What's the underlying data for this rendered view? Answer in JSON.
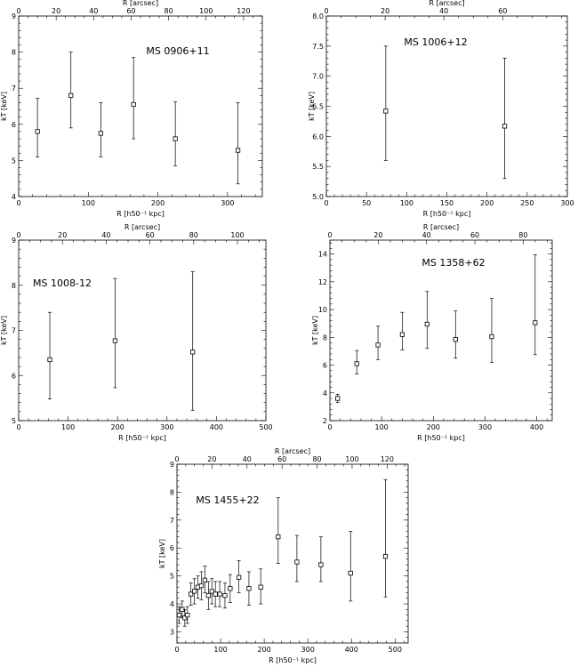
{
  "chart_data": [
    {
      "type": "scatter",
      "title": "MS 0906+11",
      "xlabel": "R [h50⁻¹ kpc]",
      "ylabel": "kT [keV]",
      "top_xlabel": "R [arcsec]",
      "xlim": [
        0,
        350
      ],
      "ylim": [
        4,
        9
      ],
      "top_xlim": [
        0,
        130
      ],
      "x_ticks": [
        0,
        100,
        200,
        300
      ],
      "y_ticks": [
        4,
        5,
        6,
        7,
        8,
        9
      ],
      "top_ticks": [
        0,
        20,
        40,
        60,
        80,
        100,
        120
      ],
      "series": [
        {
          "x": [
            27,
            75,
            118,
            165,
            225,
            315
          ],
          "y": [
            5.8,
            6.8,
            5.75,
            6.55,
            5.6,
            5.28
          ],
          "y_low": [
            5.1,
            5.9,
            5.1,
            5.6,
            4.85,
            4.35
          ],
          "y_high": [
            6.72,
            8.0,
            6.6,
            7.85,
            6.62,
            6.6
          ]
        }
      ]
    },
    {
      "type": "scatter",
      "title": "MS 1006+12",
      "xlabel": "R [h50⁻¹ kpc]",
      "ylabel": "kT [keV]",
      "top_xlabel": "R [arcsec]",
      "xlim": [
        0,
        300
      ],
      "ylim": [
        5.0,
        8.0
      ],
      "top_xlim": [
        0,
        82
      ],
      "x_ticks": [
        0,
        50,
        100,
        150,
        200,
        250,
        300
      ],
      "y_ticks": [
        5.0,
        5.5,
        6.0,
        6.5,
        7.0,
        7.5,
        8.0
      ],
      "y_tick_labels": [
        "5.0",
        "5.5",
        "6.0",
        "6.5",
        "7.0",
        "7.5",
        "8.0"
      ],
      "top_ticks": [
        0,
        20,
        40,
        60
      ],
      "series": [
        {
          "x": [
            74,
            222
          ],
          "y": [
            6.42,
            6.17
          ],
          "y_low": [
            5.6,
            5.3
          ],
          "y_high": [
            7.5,
            7.3
          ]
        }
      ]
    },
    {
      "type": "scatter",
      "title": "MS 1008-12",
      "xlabel": "R [h50⁻¹ kpc]",
      "ylabel": "kT [keV]",
      "top_xlabel": "R [arcsec]",
      "xlim": [
        0,
        500
      ],
      "ylim": [
        5,
        9
      ],
      "top_xlim": [
        0,
        113
      ],
      "x_ticks": [
        0,
        100,
        200,
        300,
        400,
        500
      ],
      "y_ticks": [
        5,
        6,
        7,
        8,
        9
      ],
      "top_ticks": [
        0,
        20,
        40,
        60,
        80,
        100
      ],
      "series": [
        {
          "x": [
            63,
            195,
            352
          ],
          "y": [
            6.35,
            6.77,
            6.52
          ],
          "y_low": [
            5.48,
            5.73,
            5.23
          ],
          "y_high": [
            7.4,
            8.15,
            8.3
          ]
        }
      ]
    },
    {
      "type": "scatter",
      "title": "MS 1358+62",
      "xlabel": "R [h50⁻¹ kpc]",
      "ylabel": "kT [keV]",
      "top_xlabel": "R [arcsec]",
      "xlim": [
        0,
        430
      ],
      "ylim": [
        2,
        15
      ],
      "top_xlim": [
        0,
        92
      ],
      "x_ticks": [
        0,
        100,
        200,
        300,
        400
      ],
      "y_ticks": [
        2,
        4,
        6,
        8,
        10,
        12,
        14
      ],
      "top_ticks": [
        0,
        20,
        40,
        60,
        80
      ],
      "series": [
        {
          "x": [
            15,
            52,
            93,
            140,
            188,
            243,
            313,
            397
          ],
          "y": [
            3.6,
            6.1,
            7.45,
            8.2,
            8.95,
            7.85,
            8.05,
            9.05
          ],
          "y_low": [
            3.3,
            5.35,
            6.4,
            7.1,
            7.2,
            6.5,
            6.2,
            6.75
          ],
          "y_high": [
            3.9,
            7.05,
            8.8,
            9.8,
            11.3,
            9.9,
            10.8,
            13.95
          ]
        }
      ]
    },
    {
      "type": "scatter",
      "title": "MS 1455+22",
      "xlabel": "R [h50⁻¹ kpc]",
      "ylabel": "kT [keV]",
      "top_xlabel": "R [arcsec]",
      "xlim": [
        0,
        530
      ],
      "ylim": [
        2.6,
        9
      ],
      "top_xlim": [
        0,
        132
      ],
      "x_ticks": [
        0,
        100,
        200,
        300,
        400,
        500
      ],
      "y_ticks": [
        3,
        4,
        5,
        6,
        7,
        8,
        9
      ],
      "top_ticks": [
        0,
        20,
        40,
        60,
        80,
        100,
        120
      ],
      "series": [
        {
          "x": [
            5,
            12,
            18,
            24,
            32,
            40,
            48,
            56,
            64,
            72,
            80,
            88,
            98,
            110,
            122,
            142,
            165,
            192,
            232,
            275,
            330,
            398,
            478
          ],
          "y": [
            3.6,
            3.8,
            3.5,
            3.6,
            4.35,
            4.45,
            4.6,
            4.65,
            4.85,
            4.3,
            4.45,
            4.35,
            4.35,
            4.3,
            4.55,
            4.95,
            4.55,
            4.6,
            6.4,
            5.5,
            5.4,
            5.1,
            5.7
          ],
          "y_low": [
            3.3,
            3.5,
            3.2,
            3.3,
            3.95,
            4.0,
            4.2,
            4.15,
            4.4,
            3.8,
            4.0,
            3.9,
            3.9,
            3.85,
            4.05,
            4.4,
            3.95,
            4.0,
            5.45,
            4.8,
            4.8,
            4.1,
            4.25
          ],
          "y_high": [
            3.9,
            4.1,
            3.8,
            3.9,
            4.75,
            4.9,
            5.0,
            5.15,
            5.35,
            4.8,
            4.9,
            4.8,
            4.8,
            4.75,
            5.05,
            5.55,
            5.15,
            5.25,
            7.8,
            6.45,
            6.4,
            6.6,
            8.45
          ]
        }
      ]
    }
  ]
}
